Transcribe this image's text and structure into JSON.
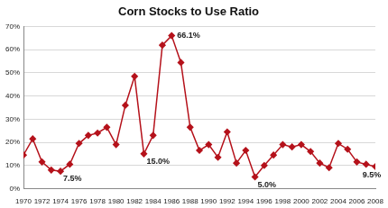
{
  "chart_data": {
    "type": "line",
    "title": "Corn Stocks to Use Ratio",
    "categories": [
      "1970",
      null,
      "1972",
      null,
      "1974",
      null,
      "1976",
      null,
      "1978",
      null,
      "1980",
      null,
      "1982",
      null,
      "1984",
      null,
      "1986",
      null,
      "1988",
      null,
      "1990",
      null,
      "1992",
      null,
      "1994",
      null,
      "1996",
      null,
      "1998",
      null,
      "2000",
      null,
      "2002",
      null,
      "2004",
      null,
      "2006",
      null,
      "2008"
    ],
    "values": [
      14.5,
      21.5,
      11.5,
      8,
      7.5,
      10.5,
      19.5,
      23,
      24,
      26.5,
      19,
      36,
      48.5,
      15,
      23,
      62,
      66.1,
      54.5,
      26.5,
      16.5,
      19,
      13.5,
      24.5,
      11,
      16.5,
      5,
      10,
      14.5,
      19,
      18,
      19,
      16,
      11,
      9,
      19.5,
      17,
      11.5,
      10.5,
      9.5
    ],
    "value_labels": [
      null,
      null,
      null,
      null,
      "7.5%",
      null,
      null,
      null,
      null,
      null,
      null,
      null,
      null,
      "15.0%",
      null,
      null,
      "66.1%",
      null,
      null,
      null,
      null,
      null,
      null,
      null,
      null,
      "5.0%",
      null,
      null,
      null,
      null,
      null,
      null,
      null,
      null,
      null,
      null,
      null,
      null,
      "9.5%"
    ],
    "data_labels": true,
    "color": "#b5121b",
    "marker": "diamond",
    "ylim": [
      0,
      70
    ],
    "yticks": [
      {
        "value": 0,
        "label": "0%"
      },
      {
        "value": 10,
        "label": "10%"
      },
      {
        "value": 20,
        "label": "20%"
      },
      {
        "value": 30,
        "label": "30%"
      },
      {
        "value": 40,
        "label": "40%"
      },
      {
        "value": 50,
        "label": "50%"
      },
      {
        "value": 60,
        "label": "60%"
      },
      {
        "value": 70,
        "label": "70%"
      }
    ],
    "grid": true
  }
}
